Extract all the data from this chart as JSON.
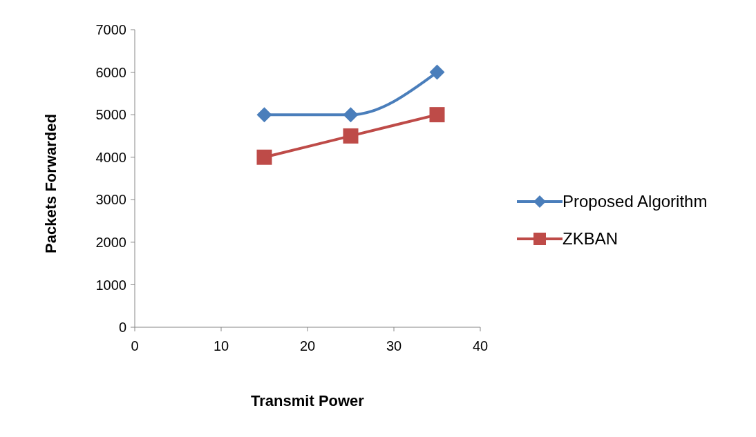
{
  "chart_data": {
    "type": "line",
    "xlabel": "Transmit Power",
    "ylabel": "Packets Forwarded",
    "x": [
      15,
      25,
      35
    ],
    "series": [
      {
        "name": "Proposed Algorithm",
        "color": "#4a7ebb",
        "values": [
          5000,
          5000,
          6000
        ],
        "marker": "diamond"
      },
      {
        "name": "ZKBAN",
        "color": "#be4b48",
        "values": [
          4000,
          4500,
          5000
        ],
        "marker": "square"
      }
    ],
    "xlim": [
      0,
      40
    ],
    "xticks": [
      0,
      10,
      20,
      30,
      40
    ],
    "ylim": [
      0,
      7000
    ],
    "yticks": [
      0,
      1000,
      2000,
      3000,
      4000,
      5000,
      6000,
      7000
    ],
    "grid": false,
    "legend": "right",
    "line_style": "solid"
  }
}
